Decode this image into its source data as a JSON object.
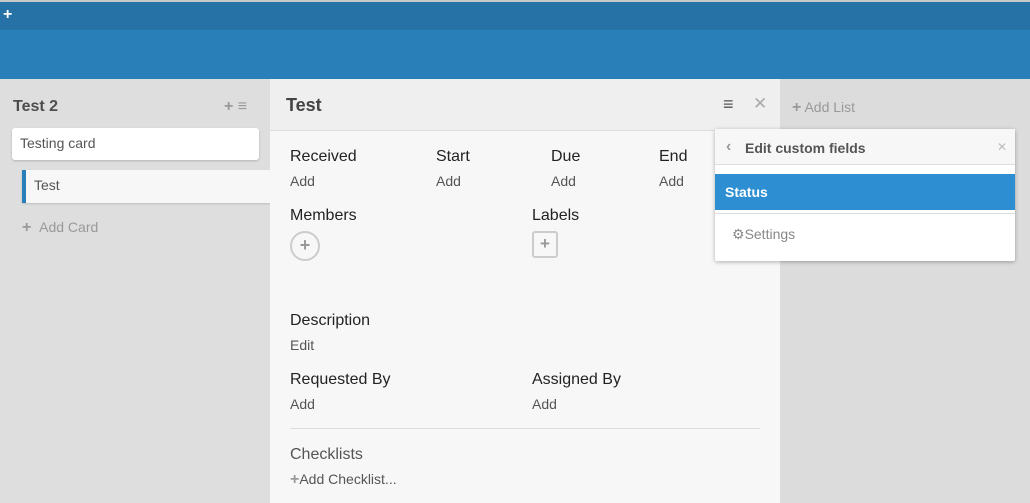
{
  "topbar": {
    "add_icon": "plus-icon"
  },
  "list": {
    "title": "Test 2",
    "cards": [
      "Testing card",
      "Test"
    ],
    "add_card": "Add Card"
  },
  "board": {
    "add_list": "Add List"
  },
  "detail": {
    "title": "Test",
    "dates": [
      {
        "label": "Received",
        "value": "Add"
      },
      {
        "label": "Start",
        "value": "Add"
      },
      {
        "label": "Due",
        "value": "Add"
      },
      {
        "label": "End",
        "value": "Add"
      }
    ],
    "members_label": "Members",
    "labels_label": "Labels",
    "description_label": "Description",
    "description_value": "Edit",
    "requested_by_label": "Requested By",
    "requested_by_value": "Add",
    "assigned_by_label": "Assigned By",
    "assigned_by_value": "Add",
    "checklists_label": "Checklists",
    "add_checklist": "Add Checklist..."
  },
  "popup": {
    "title": "Edit custom fields",
    "items": [
      "Status"
    ],
    "settings": "Settings"
  },
  "colors": {
    "topbar": "#2672a6",
    "header": "#2980b9",
    "selected": "#2d8fd2"
  }
}
